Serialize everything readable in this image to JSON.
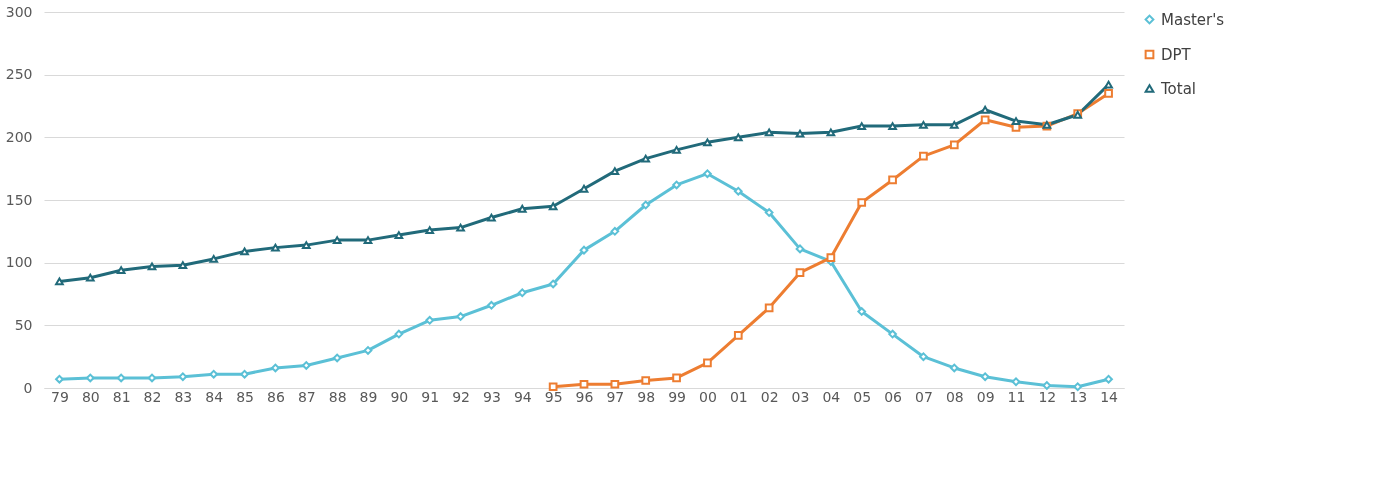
{
  "chart_data": {
    "type": "line",
    "categories": [
      "79",
      "80",
      "81",
      "82",
      "83",
      "84",
      "85",
      "86",
      "87",
      "88",
      "89",
      "90",
      "91",
      "92",
      "93",
      "94",
      "95",
      "96",
      "97",
      "98",
      "99",
      "00",
      "01",
      "02",
      "03",
      "04",
      "05",
      "06",
      "07",
      "08",
      "09",
      "11",
      "12",
      "13",
      "14"
    ],
    "ylim": [
      0,
      300
    ],
    "yticks": [
      0,
      50,
      100,
      150,
      200,
      250,
      300
    ],
    "grid": "y",
    "legend": "right",
    "series": [
      {
        "name": "Master's",
        "color": "#5bc0d6",
        "marker": "diamond",
        "values": [
          7,
          8,
          8,
          8,
          9,
          11,
          11,
          16,
          18,
          24,
          30,
          43,
          54,
          57,
          66,
          76,
          83,
          110,
          125,
          146,
          162,
          171,
          157,
          140,
          111,
          101,
          61,
          43,
          25,
          16,
          9,
          5,
          2,
          1,
          7
        ]
      },
      {
        "name": "DPT",
        "color": "#ed7d31",
        "marker": "square",
        "values": [
          null,
          null,
          null,
          null,
          null,
          null,
          null,
          null,
          null,
          null,
          null,
          null,
          null,
          null,
          null,
          null,
          1,
          3,
          3,
          6,
          8,
          20,
          42,
          64,
          92,
          104,
          148,
          166,
          185,
          194,
          214,
          208,
          209,
          219,
          235
        ]
      },
      {
        "name": "Total",
        "color": "#216a7a",
        "marker": "triangle",
        "values": [
          85,
          88,
          94,
          97,
          98,
          103,
          109,
          112,
          114,
          118,
          118,
          122,
          126,
          128,
          136,
          143,
          145,
          159,
          173,
          183,
          190,
          196,
          200,
          204,
          203,
          204,
          209,
          209,
          210,
          210,
          222,
          213,
          210,
          218,
          242
        ]
      }
    ]
  }
}
